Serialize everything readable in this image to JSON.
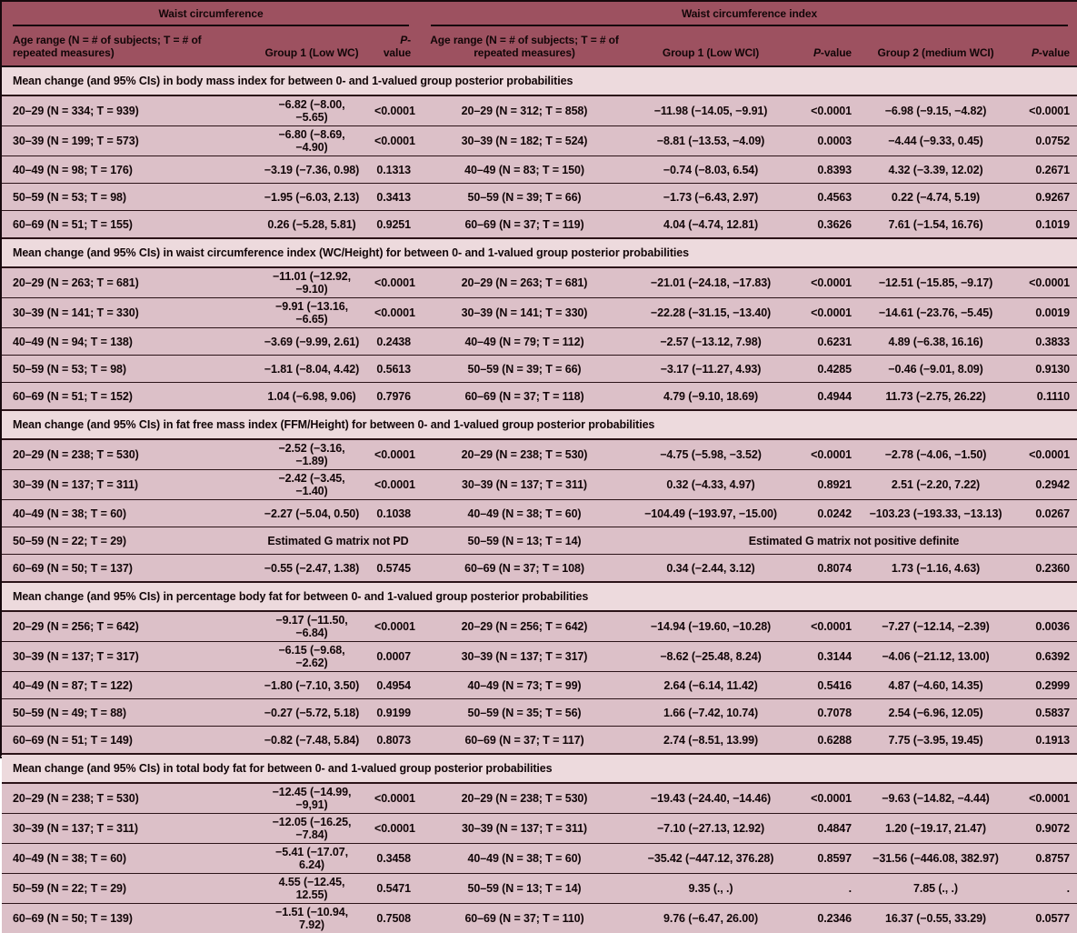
{
  "colors": {
    "header_bg": "#9d5160",
    "section_header_bg": "#eddadd",
    "data_row_bg": "#dcc0c8",
    "rule": "#2b1318"
  },
  "groups": [
    "Waist circumference",
    "Waist circumference index"
  ],
  "columns": {
    "age": "Age range (N = # of subjects; T = # of repeated measures)",
    "group1_wc": "Group 1 (Low WC)",
    "group1_wci": "Group 1 (Low WCI)",
    "group2_wci": "Group 2 (medium WCI)",
    "p_italic": "P",
    "p_rest": "-value"
  },
  "sections": [
    {
      "title": "Mean change (and 95% CIs) in body mass index for between 0- and 1-valued group posterior probabilities",
      "rows": [
        {
          "cells": [
            "20–29 (N = 334; T = 939)",
            "−6.82 (−8.00, −5.65)",
            "<0.0001",
            "20–29 (N = 312; T = 858)",
            "−11.98 (−14.05, −9.91)",
            "<0.0001",
            "−6.98 (−9.15, −4.82)",
            "<0.0001"
          ]
        },
        {
          "cells": [
            "30–39 (N = 199; T = 573)",
            "−6.80 (−8.69, −4.90)",
            "<0.0001",
            "30–39 (N = 182; T = 524)",
            "−8.81 (−13.53, −4.09)",
            "0.0003",
            "−4.44 (−9.33, 0.45)",
            "0.0752"
          ]
        },
        {
          "cells": [
            "40–49 (N = 98; T = 176)",
            "−3.19 (−7.36, 0.98)",
            "0.1313",
            "40–49 (N = 83; T = 150)",
            "−0.74 (−8.03, 6.54)",
            "0.8393",
            "4.32 (−3.39, 12.02)",
            "0.2671"
          ]
        },
        {
          "cells": [
            "50–59 (N = 53; T = 98)",
            "−1.95 (−6.03, 2.13)",
            "0.3413",
            "50–59 (N = 39; T = 66)",
            "−1.73 (−6.43, 2.97)",
            "0.4563",
            "0.22 (−4.74, 5.19)",
            "0.9267"
          ]
        },
        {
          "cells": [
            "60–69 (N = 51; T = 155)",
            "0.26 (−5.28, 5.81)",
            "0.9251",
            "60–69 (N = 37; T = 119)",
            "4.04 (−4.74, 12.81)",
            "0.3626",
            "7.61 (−1.54, 16.76)",
            "0.1019"
          ]
        }
      ]
    },
    {
      "title": "Mean change (and 95% CIs) in waist circumference index (WC/Height) for between 0- and 1-valued group posterior probabilities",
      "rows": [
        {
          "cells": [
            "20–29 (N = 263; T = 681)",
            "−11.01 (−12.92, −9.10)",
            "<0.0001",
            "20–29 (N = 263; T = 681)",
            "−21.01 (−24.18, −17.83)",
            "<0.0001",
            "−12.51 (−15.85, −9.17)",
            "<0.0001"
          ]
        },
        {
          "cells": [
            "30–39 (N = 141; T = 330)",
            "−9.91 (−13.16, −6.65)",
            "<0.0001",
            "30–39 (N = 141; T = 330)",
            "−22.28 (−31.15, −13.40)",
            "<0.0001",
            "−14.61 (−23.76, −5.45)",
            "0.0019"
          ]
        },
        {
          "cells": [
            "40–49 (N = 94; T = 138)",
            "−3.69 (−9.99, 2.61)",
            "0.2438",
            "40–49 (N = 79; T = 112)",
            "−2.57 (−13.12, 7.98)",
            "0.6231",
            "4.89 (−6.38, 16.16)",
            "0.3833"
          ]
        },
        {
          "cells": [
            "50–59 (N = 53; T = 98)",
            "−1.81 (−8.04, 4.42)",
            "0.5613",
            "50–59 (N = 39; T = 66)",
            "−3.17 (−11.27, 4.93)",
            "0.4285",
            "−0.46 (−9.01, 8.09)",
            "0.9130"
          ]
        },
        {
          "cells": [
            "60–69 (N = 51; T = 152)",
            "1.04 (−6.98, 9.06)",
            "0.7976",
            "60–69 (N = 37; T = 118)",
            "4.79 (−9.10, 18.69)",
            "0.4944",
            "11.73 (−2.75, 26.22)",
            "0.1110"
          ]
        }
      ]
    },
    {
      "title": "Mean change (and 95% CIs) in fat free mass index (FFM/Height) for between 0- and 1-valued group posterior probabilities",
      "rows": [
        {
          "cells": [
            "20–29 (N = 238; T = 530)",
            "−2.52 (−3.16, −1.89)",
            "<0.0001",
            "20–29 (N = 238; T = 530)",
            "−4.75 (−5.98, −3.52)",
            "<0.0001",
            "−2.78 (−4.06, −1.50)",
            "<0.0001"
          ]
        },
        {
          "cells": [
            "30–39 (N = 137; T = 311)",
            "−2.42 (−3.45, −1.40)",
            "<0.0001",
            "30–39 (N = 137; T = 311)",
            "0.32 (−4.33, 4.97)",
            "0.8921",
            "2.51 (−2.20, 7.22)",
            "0.2942"
          ]
        },
        {
          "cells": [
            "40–49 (N = 38; T = 60)",
            "−2.27 (−5.04, 0.50)",
            "0.1038",
            "40–49 (N = 38; T = 60)",
            "−104.49 (−193.97, −15.00)",
            "0.0242",
            "−103.23 (−193.33, −13.13)",
            "0.0267"
          ]
        },
        {
          "merged": true,
          "age_left": "50–59 (N = 22; T = 29)",
          "note_left": "Estimated G matrix not PD",
          "age_right": "50–59 (N = 13; T = 14)",
          "note_right": "Estimated G matrix not positive definite"
        },
        {
          "cells": [
            "60–69 (N = 50; T = 137)",
            "−0.55 (−2.47, 1.38)",
            "0.5745",
            "60–69 (N = 37; T = 108)",
            "0.34 (−2.44, 3.12)",
            "0.8074",
            "1.73 (−1.16, 4.63)",
            "0.2360"
          ]
        }
      ]
    },
    {
      "title": "Mean change (and 95% CIs) in percentage body fat for between 0- and 1-valued group posterior probabilities",
      "rows": [
        {
          "cells": [
            "20–29 (N = 256; T = 642)",
            "−9.17 (−11.50, −6.84)",
            "<0.0001",
            "20–29 (N = 256; T = 642)",
            "−14.94 (−19.60, −10.28)",
            "<0.0001",
            "−7.27 (−12.14, −2.39)",
            "0.0036"
          ]
        },
        {
          "cells": [
            "30–39 (N = 137; T = 317)",
            "−6.15 (−9.68, −2.62)",
            "0.0007",
            "30–39 (N = 137; T = 317)",
            "−8.62 (−25.48, 8.24)",
            "0.3144",
            "−4.06 (−21.12, 13.00)",
            "0.6392"
          ]
        },
        {
          "cells": [
            "40–49 (N = 87; T = 122)",
            "−1.80 (−7.10, 3.50)",
            "0.4954",
            "40–49 (N = 73; T = 99)",
            "2.64 (−6.14, 11.42)",
            "0.5416",
            "4.87 (−4.60, 14.35)",
            "0.2999"
          ]
        },
        {
          "cells": [
            "50–59 (N = 49; T = 88)",
            "−0.27 (−5.72, 5.18)",
            "0.9199",
            "50–59 (N = 35; T = 56)",
            "1.66 (−7.42, 10.74)",
            "0.7078",
            "2.54 (−6.96, 12.05)",
            "0.5837"
          ]
        },
        {
          "cells": [
            "60–69 (N = 51; T = 149)",
            "−0.82 (−7.48, 5.84)",
            "0.8073",
            "60–69 (N = 37; T = 117)",
            "2.74 (−8.51, 13.99)",
            "0.6288",
            "7.75 (−3.95, 19.45)",
            "0.1913"
          ]
        }
      ]
    },
    {
      "title": "Mean change (and 95% CIs) in total body fat for between 0- and 1-valued group posterior probabilities",
      "rows": [
        {
          "cells": [
            "20–29 (N = 238; T = 530)",
            "−12.45 (−14.99, −9,91)",
            "<0.0001",
            "20–29 (N = 238; T = 530)",
            "−19.43 (−24.40, −14.46)",
            "<0.0001",
            "−9.63 (−14.82, −4.44)",
            "<0.0001"
          ]
        },
        {
          "cells": [
            "30–39 (N = 137; T = 311)",
            "−12.05 (−16.25, −7.84)",
            "<0.0001",
            "30–39 (N = 137; T = 311)",
            "−7.10 (−27.13, 12.92)",
            "0.4847",
            "1.20 (−19.17, 21.47)",
            "0.9072"
          ]
        },
        {
          "cells": [
            "40–49 (N = 38; T = 60)",
            "−5.41 (−17.07, 6.24)",
            "0.3458",
            "40–49 (N = 38; T = 60)",
            "−35.42 (−447.12, 376.28)",
            "0.8597",
            "−31.56 (−446.08, 382.97)",
            "0.8757"
          ]
        },
        {
          "cells": [
            "50–59 (N = 22; T = 29)",
            "4.55 (−12.45, 12.55)",
            "0.5471",
            "50–59 (N = 13; T = 14)",
            "9.35 (., .)",
            ".",
            "7.85 (., .)",
            "."
          ]
        },
        {
          "cells": [
            "60–69 (N = 50; T = 139)",
            "−1.51 (−10.94, 7.92)",
            "0.7508",
            "60–69 (N = 37; T = 110)",
            "9.76 (−6.47, 26.00)",
            "0.2346",
            "16.37 (−0.55, 33.29)",
            "0.0577"
          ]
        }
      ]
    }
  ]
}
